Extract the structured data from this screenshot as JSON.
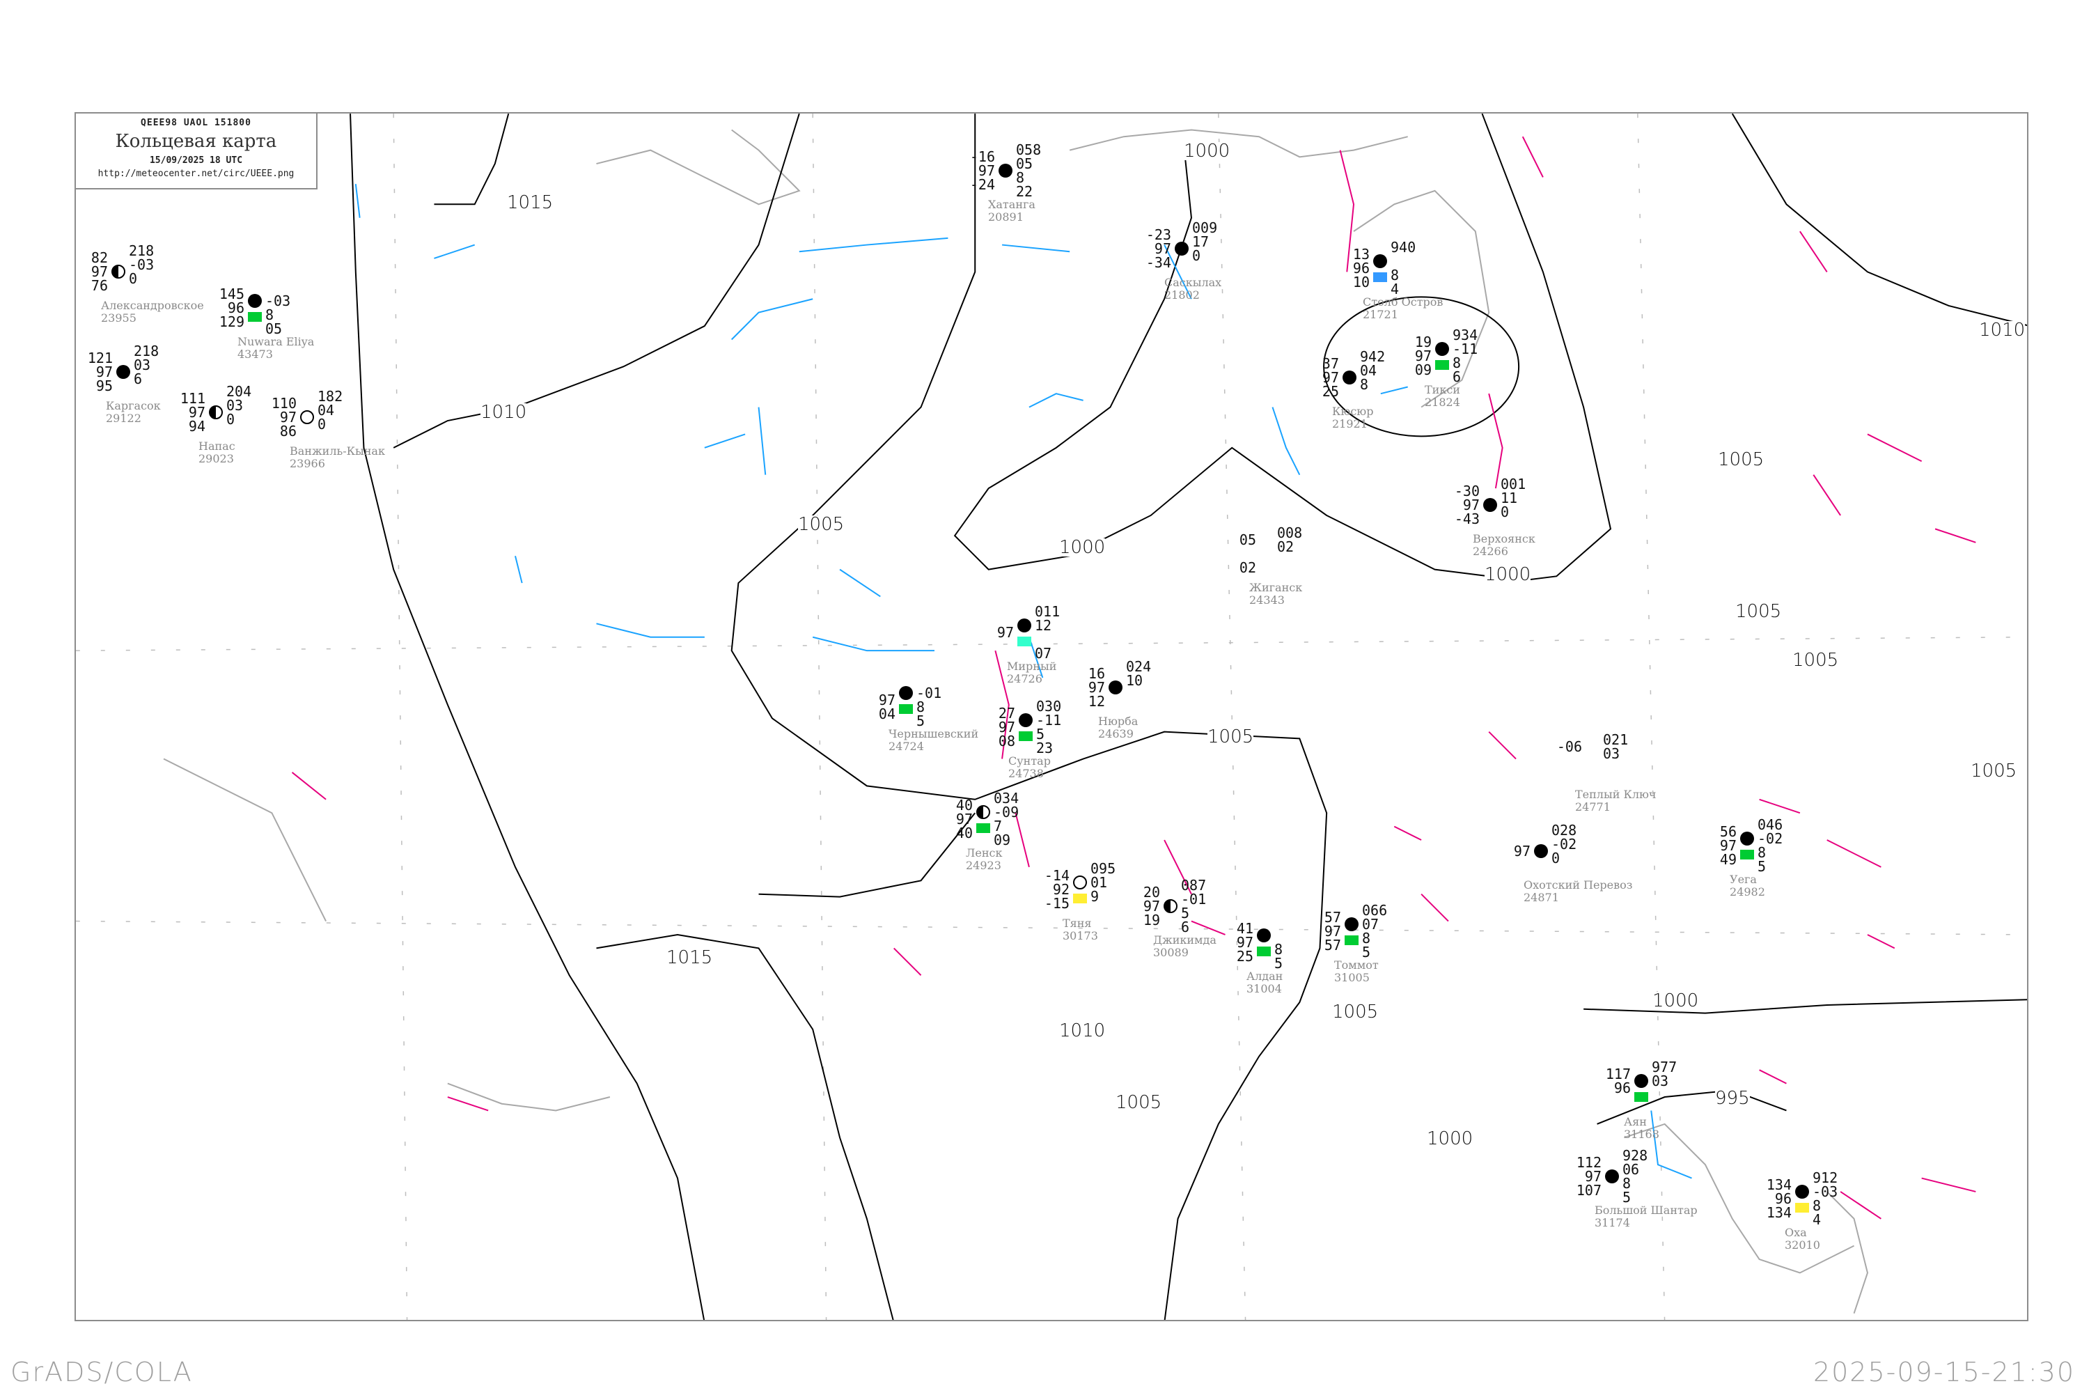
{
  "header": {
    "code": "QEEE98   UAOL   151800",
    "title": "Кольцевая карта",
    "date": "15/09/2025 18 UTC",
    "url": "http://meteocenter.net/circ/UEEE.png"
  },
  "footer": {
    "software": "GrADS/COLA",
    "timestamp": "2025-09-15-21:30"
  },
  "colors": {
    "isobar": "#000000",
    "coastline": "#a8a8a8",
    "cold_isotherm": "#1aa3ff",
    "warm_isotherm": "#e6007e",
    "station_name": "#8a8a8a",
    "precip_marker_green": "#00cc33",
    "precip_marker_blue": "#3399ff",
    "precip_marker_yellow": "#ffee33"
  },
  "isobar_labels": [
    "1015",
    "1010",
    "1005",
    "1000",
    "1000",
    "1000",
    "1005",
    "1005",
    "1005",
    "1005",
    "1005",
    "1010",
    "1000",
    "995",
    "1005",
    "1010",
    "1015",
    "1005",
    "1000"
  ],
  "stations": [
    {
      "name": "Хатанга",
      "id": "20891",
      "temperature": "-16",
      "visibility": "97",
      "dewpoint": "-24",
      "pressure": "058",
      "tendency": "05",
      "cloud": "8",
      "extra": "22",
      "sky": "full",
      "marker": ""
    },
    {
      "name": "Александровское",
      "id": "23955",
      "temperature": "82",
      "visibility": "97",
      "dewpoint": "76",
      "pressure": "218",
      "tendency": "-03",
      "cloud": "0",
      "extra": "",
      "sky": "half",
      "marker": ""
    },
    {
      "name": "Nuwara Eliya",
      "id": "43473",
      "temperature": "145",
      "visibility": "96",
      "dewpoint": "129",
      "pressure": "",
      "tendency": "-03",
      "cloud": "8",
      "extra": "05",
      "sky": "full",
      "marker": "green"
    },
    {
      "name": "Каргасок",
      "id": "29122",
      "temperature": "121",
      "visibility": "97",
      "dewpoint": "95",
      "pressure": "218",
      "tendency": "03",
      "cloud": "6",
      "extra": "",
      "sky": "full",
      "marker": ""
    },
    {
      "name": "Напас",
      "id": "29023",
      "temperature": "111",
      "visibility": "97",
      "dewpoint": "94",
      "pressure": "204",
      "tendency": "03",
      "cloud": "0",
      "extra": "",
      "sky": "half",
      "marker": ""
    },
    {
      "name": "Ванжиль-Кынак",
      "id": "23966",
      "temperature": "110",
      "visibility": "97",
      "dewpoint": "86",
      "pressure": "182",
      "tendency": "04",
      "cloud": "0",
      "extra": "",
      "sky": "open",
      "marker": ""
    },
    {
      "name": "Саскылах",
      "id": "21802",
      "temperature": "-23",
      "visibility": "97",
      "dewpoint": "-34",
      "pressure": "009",
      "tendency": "17",
      "cloud": "0",
      "extra": "",
      "sky": "full",
      "marker": ""
    },
    {
      "name": "Столб Остров",
      "id": "21721",
      "temperature": "13",
      "visibility": "96",
      "dewpoint": "10",
      "pressure": "940",
      "tendency": "",
      "cloud": "8",
      "extra": "4",
      "sky": "full",
      "marker": "blue"
    },
    {
      "name": "Тикси",
      "id": "21824",
      "temperature": "19",
      "visibility": "97",
      "dewpoint": "09",
      "pressure": "934",
      "tendency": "-11",
      "cloud": "8",
      "extra": "6",
      "sky": "full",
      "marker": "green"
    },
    {
      "name": "Кюсюр",
      "id": "21921",
      "temperature": "37",
      "visibility": "97",
      "dewpoint": "25",
      "pressure": "942",
      "tendency": "04",
      "cloud": "8",
      "extra": "",
      "sky": "full",
      "marker": ""
    },
    {
      "name": "Жиганск",
      "id": "24343",
      "temperature": "05",
      "visibility": "",
      "dewpoint": "02",
      "pressure": "008",
      "tendency": "02",
      "cloud": "",
      "extra": "",
      "sky": "none",
      "marker": ""
    },
    {
      "name": "Верхоянск",
      "id": "24266",
      "temperature": "-30",
      "visibility": "97",
      "dewpoint": "-43",
      "pressure": "001",
      "tendency": "11",
      "cloud": "0",
      "extra": "",
      "sky": "full",
      "marker": ""
    },
    {
      "name": "Нюрба",
      "id": "24639",
      "temperature": "16",
      "visibility": "97",
      "dewpoint": "12",
      "pressure": "024",
      "tendency": "10",
      "cloud": "",
      "extra": "",
      "sky": "full",
      "marker": ""
    },
    {
      "name": "Сунтар",
      "id": "24738",
      "temperature": "27",
      "visibility": "97",
      "dewpoint": "08",
      "pressure": "030",
      "tendency": "-11",
      "cloud": "5",
      "extra": "23",
      "sky": "full",
      "marker": "green"
    },
    {
      "name": "Чернышевский",
      "id": "24724",
      "temperature": "",
      "visibility": "97",
      "dewpoint": "04",
      "pressure": "",
      "tendency": "-01",
      "cloud": "8",
      "extra": "5",
      "sky": "full",
      "marker": "green"
    },
    {
      "name": "Мирный",
      "id": "24726",
      "temperature": "",
      "visibility": "97",
      "dewpoint": "",
      "pressure": "011",
      "tendency": "12",
      "cloud": "",
      "extra": "07",
      "sky": "full",
      "marker": "cyan"
    },
    {
      "name": "Ленск",
      "id": "24923",
      "temperature": "40",
      "visibility": "97",
      "dewpoint": "40",
      "pressure": "034",
      "tendency": "-09",
      "cloud": "7",
      "extra": "09",
      "sky": "half",
      "marker": "green"
    },
    {
      "name": "Тяня",
      "id": "30173",
      "temperature": "-14",
      "visibility": "92",
      "dewpoint": "-15",
      "pressure": "095",
      "tendency": "01",
      "cloud": "9",
      "extra": "",
      "sky": "open",
      "marker": "yellow"
    },
    {
      "name": "Джикимда",
      "id": "30089",
      "temperature": "20",
      "visibility": "97",
      "dewpoint": "19",
      "pressure": "087",
      "tendency": "-01",
      "cloud": "5",
      "extra": "6",
      "sky": "half",
      "marker": ""
    },
    {
      "name": "Алдан",
      "id": "31004",
      "temperature": "41",
      "visibility": "97",
      "dewpoint": "25",
      "pressure": "",
      "tendency": "",
      "cloud": "8",
      "extra": "5",
      "sky": "full",
      "marker": "green"
    },
    {
      "name": "Томмот",
      "id": "31005",
      "temperature": "57",
      "visibility": "97",
      "dewpoint": "57",
      "pressure": "066",
      "tendency": "07",
      "cloud": "8",
      "extra": "5",
      "sky": "full",
      "marker": "green"
    },
    {
      "name": "Теплый Ключ",
      "id": "24771",
      "temperature": "-06",
      "visibility": "",
      "dewpoint": "",
      "pressure": "021",
      "tendency": "03",
      "cloud": "",
      "extra": "",
      "sky": "none",
      "marker": ""
    },
    {
      "name": "Охотский Перевоз",
      "id": "24871",
      "temperature": "",
      "visibility": "97",
      "dewpoint": "",
      "pressure": "028",
      "tendency": "-02",
      "cloud": "0",
      "extra": "",
      "sky": "full",
      "marker": ""
    },
    {
      "name": "Уега",
      "id": "24982",
      "temperature": "56",
      "visibility": "97",
      "dewpoint": "49",
      "pressure": "046",
      "tendency": "-02",
      "cloud": "8",
      "extra": "5",
      "sky": "full",
      "marker": "green"
    },
    {
      "name": "Аян",
      "id": "31168",
      "temperature": "117",
      "visibility": "96",
      "dewpoint": "",
      "pressure": "977",
      "tendency": "03",
      "cloud": "",
      "extra": "",
      "sky": "full",
      "marker": "green"
    },
    {
      "name": "Большой Шантар",
      "id": "31174",
      "temperature": "112",
      "visibility": "97",
      "dewpoint": "107",
      "pressure": "928",
      "tendency": "06",
      "cloud": "8",
      "extra": "5",
      "sky": "full",
      "marker": ""
    },
    {
      "name": "Оха",
      "id": "32010",
      "temperature": "134",
      "visibility": "96",
      "dewpoint": "134",
      "pressure": "912",
      "tendency": "-03",
      "cloud": "8",
      "extra": "4",
      "sky": "full",
      "marker": "yellow"
    }
  ]
}
